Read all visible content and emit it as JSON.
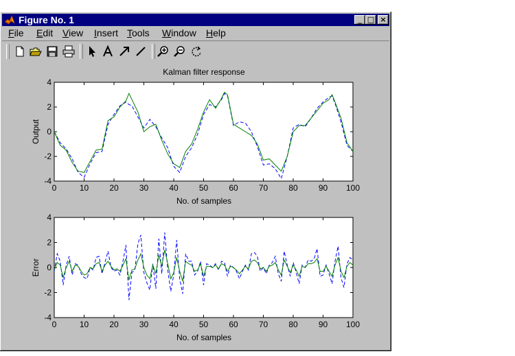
{
  "window": {
    "title": "Figure No. 1",
    "controls": {
      "minimize": "_",
      "maximize": "□",
      "close": "×"
    }
  },
  "menu": [
    {
      "key": "F",
      "rest": "ile"
    },
    {
      "key": "E",
      "rest": "dit"
    },
    {
      "key": "V",
      "rest": "iew"
    },
    {
      "key": "I",
      "rest": "nsert"
    },
    {
      "key": "T",
      "rest": "ools"
    },
    {
      "key": "W",
      "rest": "indow"
    },
    {
      "key": "H",
      "rest": "elp"
    }
  ],
  "toolbar": {
    "icons": [
      "new-file-icon",
      "open-folder-icon",
      "save-icon",
      "print-icon",
      "select-arrow-icon",
      "insert-text-icon",
      "insert-arrow-icon",
      "insert-line-icon",
      "zoom-in-icon",
      "zoom-out-icon",
      "rotate-icon"
    ]
  },
  "colors": {
    "series_dashed": "#0000ff",
    "series_solid": "#008000",
    "axes_bg": "#ffffff",
    "figure_bg": "#c0c0c0",
    "titlebar": "#000080"
  },
  "chart_data": [
    {
      "type": "line",
      "title": "Kalman filter response",
      "xlabel": "No. of samples",
      "ylabel": "Output",
      "xlim": [
        0,
        100
      ],
      "ylim": [
        -4,
        4
      ],
      "xticks": [
        "0",
        "10",
        "20",
        "30",
        "40",
        "50",
        "60",
        "70",
        "80",
        "90",
        "100"
      ],
      "yticks": [
        "4",
        "2",
        "0",
        "-2",
        "-4"
      ],
      "x": [
        0,
        2,
        4,
        6,
        8,
        10,
        12,
        14,
        16,
        18,
        20,
        22,
        24,
        25,
        26,
        28,
        30,
        32,
        34,
        36,
        38,
        40,
        42,
        44,
        46,
        48,
        50,
        52,
        54,
        56,
        57,
        58,
        60,
        62,
        64,
        66,
        68,
        70,
        72,
        74,
        76,
        78,
        80,
        82,
        84,
        86,
        88,
        90,
        92,
        93,
        94,
        96,
        98,
        100
      ],
      "series": [
        {
          "style": "dashed",
          "color": "#0000ff",
          "values": [
            0.0,
            -0.9,
            -1.4,
            -2.2,
            -3.3,
            -3.7,
            -2.6,
            -1.7,
            -1.6,
            0.6,
            1.4,
            2.1,
            2.4,
            2.2,
            2.1,
            1.2,
            0.3,
            1.0,
            0.4,
            -0.5,
            -1.3,
            -2.8,
            -3.3,
            -2.0,
            -1.3,
            -0.2,
            1.4,
            2.2,
            2.0,
            2.6,
            3.1,
            2.9,
            0.5,
            0.8,
            0.7,
            0.0,
            -1.2,
            -2.7,
            -2.6,
            -3.0,
            -3.8,
            -2.0,
            0.3,
            0.6,
            0.4,
            1.1,
            1.9,
            2.4,
            2.8,
            2.9,
            2.3,
            0.8,
            -1.1,
            -1.6
          ]
        },
        {
          "style": "solid",
          "color": "#008000",
          "values": [
            0.0,
            -1.1,
            -1.5,
            -2.5,
            -3.2,
            -3.3,
            -2.4,
            -1.5,
            -1.4,
            0.9,
            1.2,
            2.0,
            2.5,
            3.1,
            2.6,
            1.6,
            0.0,
            0.4,
            0.6,
            -0.7,
            -1.8,
            -2.6,
            -2.9,
            -1.6,
            -1.0,
            0.2,
            1.6,
            2.6,
            1.9,
            2.7,
            3.2,
            3.0,
            0.6,
            0.3,
            0.0,
            -0.3,
            -1.0,
            -2.3,
            -2.2,
            -2.7,
            -3.2,
            -2.0,
            0.0,
            0.5,
            0.5,
            1.1,
            1.7,
            2.3,
            2.6,
            3.0,
            2.4,
            1.1,
            -0.9,
            -1.6
          ]
        }
      ]
    },
    {
      "type": "line",
      "title": "",
      "xlabel": "No. of samples",
      "ylabel": "Error",
      "xlim": [
        0,
        100
      ],
      "ylim": [
        -4,
        4
      ],
      "xticks": [
        "0",
        "10",
        "20",
        "30",
        "40",
        "50",
        "60",
        "70",
        "80",
        "90",
        "100"
      ],
      "yticks": [
        "4",
        "2",
        "0",
        "-2",
        "-4"
      ],
      "x": [
        0,
        1,
        2,
        3,
        4,
        5,
        6,
        7,
        8,
        9,
        10,
        11,
        12,
        13,
        14,
        15,
        16,
        17,
        18,
        19,
        20,
        21,
        22,
        23,
        24,
        25,
        26,
        27,
        28,
        29,
        30,
        31,
        32,
        33,
        34,
        35,
        36,
        37,
        38,
        39,
        40,
        41,
        42,
        43,
        44,
        45,
        46,
        47,
        48,
        49,
        50,
        51,
        52,
        53,
        54,
        55,
        56,
        57,
        58,
        59,
        60,
        61,
        62,
        63,
        64,
        65,
        66,
        67,
        68,
        69,
        70,
        71,
        72,
        73,
        74,
        75,
        76,
        77,
        78,
        79,
        80,
        81,
        82,
        83,
        84,
        85,
        86,
        87,
        88,
        89,
        90,
        91,
        92,
        93,
        94,
        95,
        96,
        97,
        98,
        99,
        100
      ],
      "series": [
        {
          "style": "dashed",
          "color": "#0000ff",
          "values": [
            -0.3,
            1.1,
            0.5,
            -1.4,
            0.2,
            0.9,
            -0.6,
            0.3,
            0.2,
            -0.5,
            -0.8,
            -0.9,
            0.0,
            -0.2,
            0.8,
            0.9,
            -0.5,
            0.4,
            1.3,
            0.0,
            -0.3,
            -0.2,
            -0.6,
            0.5,
            1.8,
            -2.6,
            -0.4,
            -0.2,
            1.9,
            2.6,
            -0.4,
            -1.2,
            -1.8,
            0.3,
            -1.7,
            2.3,
            -0.5,
            2.8,
            -0.2,
            -1.9,
            -0.6,
            2.2,
            -0.9,
            -2.1,
            1.1,
            0.5,
            0.5,
            -0.6,
            -0.3,
            0.5,
            -1.4,
            0.3,
            0.2,
            0.0,
            0.3,
            -0.2,
            0.5,
            0.4,
            -0.7,
            0.2,
            0.0,
            -0.3,
            -0.9,
            -0.3,
            0.2,
            -0.2,
            1.1,
            1.2,
            0.9,
            -0.3,
            0.0,
            -0.5,
            0.2,
            0.4,
            0.9,
            -0.5,
            -1.1,
            1.3,
            0.2,
            -0.7,
            0.4,
            -0.4,
            -1.3,
            0.2,
            0.0,
            0.6,
            0.5,
            0.7,
            1.5,
            -0.7,
            -0.6,
            0.2,
            -0.5,
            -1.3,
            0.5,
            1.7,
            -0.8,
            -1.6,
            0.3,
            0.8,
            0.6
          ]
        },
        {
          "style": "solid",
          "color": "#008000",
          "values": [
            -0.2,
            0.4,
            0.2,
            -0.8,
            0.0,
            0.5,
            -0.3,
            0.2,
            0.1,
            -0.3,
            -0.6,
            -0.5,
            0.0,
            -0.1,
            0.3,
            0.4,
            -0.3,
            0.2,
            0.5,
            0.1,
            -0.2,
            -0.1,
            -0.3,
            0.2,
            0.7,
            -1.0,
            -0.2,
            -0.1,
            0.6,
            1.1,
            0.0,
            -0.6,
            -0.9,
            0.2,
            -0.5,
            1.0,
            0.1,
            1.4,
            0.3,
            -0.9,
            -0.4,
            0.8,
            -0.3,
            -1.1,
            0.5,
            0.3,
            0.2,
            -0.3,
            -0.2,
            0.3,
            -0.7,
            0.1,
            0.1,
            0.0,
            0.2,
            -0.1,
            0.3,
            0.2,
            -0.3,
            0.1,
            0.0,
            -0.2,
            -0.5,
            -0.2,
            0.1,
            -0.1,
            0.5,
            0.6,
            0.4,
            -0.1,
            0.0,
            -0.3,
            0.1,
            0.2,
            0.4,
            -0.2,
            -0.6,
            0.6,
            0.1,
            -0.4,
            0.2,
            -0.2,
            -0.7,
            0.1,
            0.0,
            0.3,
            0.3,
            0.4,
            0.7,
            -0.3,
            -0.3,
            0.1,
            -0.3,
            -0.7,
            0.2,
            0.8,
            -0.3,
            -0.8,
            0.1,
            0.4,
            0.2
          ]
        }
      ]
    }
  ]
}
